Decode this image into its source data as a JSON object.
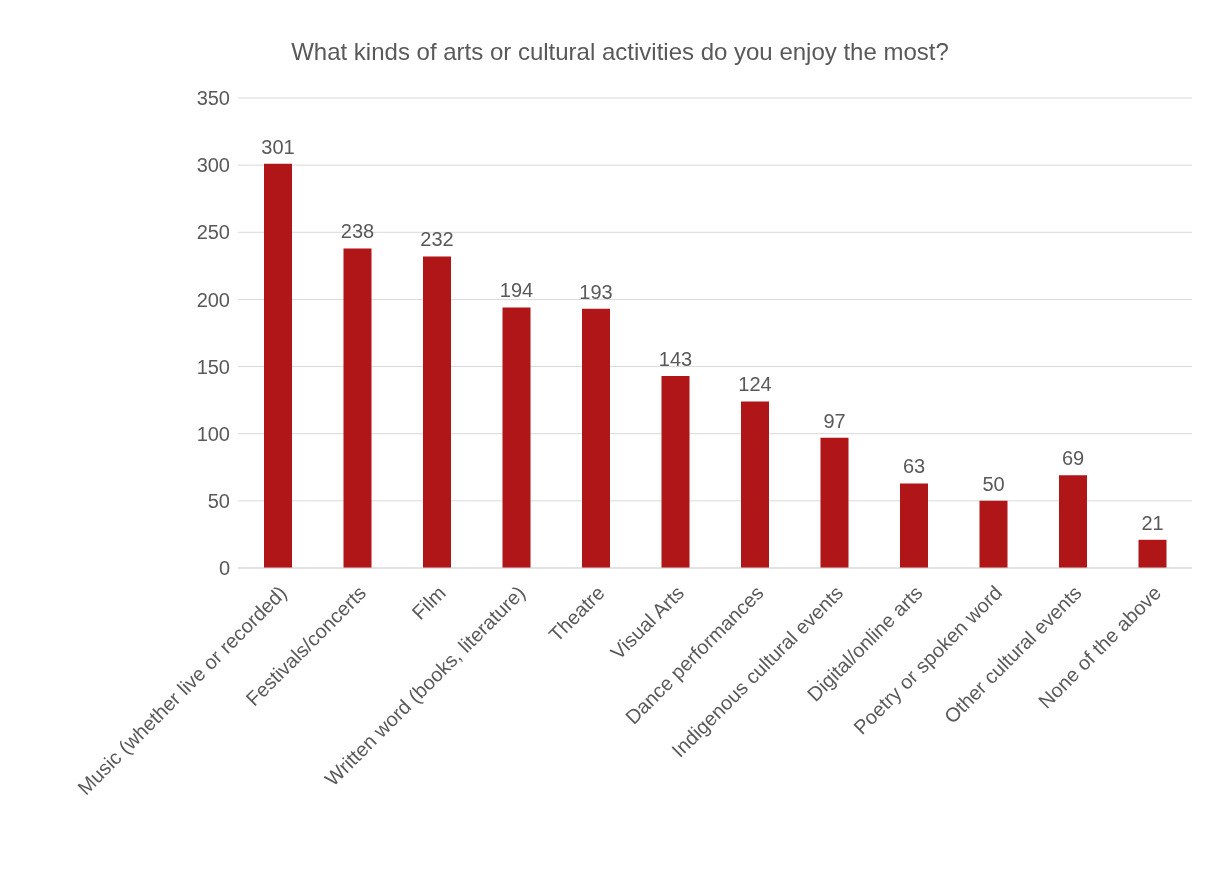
{
  "chart_data": {
    "type": "bar",
    "title": "What kinds of arts or cultural activities do you enjoy the most?",
    "categories": [
      "Music (whether live or recorded)",
      "Festivals/concerts",
      "Film",
      "Written word (books, literature)",
      "Theatre",
      "Visual Arts",
      "Dance performances",
      "Indigenous cultural events",
      "Digital/online arts",
      "Poetry or spoken word",
      "Other cultural events",
      "None of the above"
    ],
    "values": [
      301,
      238,
      232,
      194,
      193,
      143,
      124,
      97,
      63,
      50,
      69,
      21
    ],
    "color": "#b01517",
    "ylim": [
      0,
      350
    ],
    "yticks": [
      0,
      50,
      100,
      150,
      200,
      250,
      300,
      350
    ],
    "grid": "y",
    "data_labels": true,
    "legend": false
  }
}
